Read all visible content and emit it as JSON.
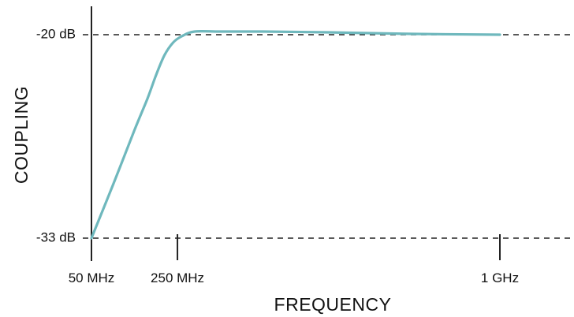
{
  "chart_data": {
    "type": "line",
    "title": "",
    "xlabel": "FREQUENCY",
    "ylabel": "COUPLING",
    "x_ticks": [
      {
        "value": 50,
        "label": "50 MHz"
      },
      {
        "value": 250,
        "label": "250 MHz"
      },
      {
        "value": 1000,
        "label": "1 GHz"
      }
    ],
    "y_ticks": [
      {
        "value": -20,
        "label": "-20 dB"
      },
      {
        "value": -33,
        "label": "-33 dB"
      }
    ],
    "xlim": [
      50,
      1000
    ],
    "ylim": [
      -33,
      -20
    ],
    "reference_lines": [
      -20,
      -33
    ],
    "grid": false,
    "series": [
      {
        "color": "#6fb8bd",
        "points": [
          [
            50,
            -33
          ],
          [
            100,
            -29.6
          ],
          [
            150,
            -26.1
          ],
          [
            180,
            -24.1
          ],
          [
            200,
            -22.6
          ],
          [
            220,
            -21.3
          ],
          [
            240,
            -20.5
          ],
          [
            260,
            -20.1
          ],
          [
            290,
            -19.8
          ],
          [
            350,
            -19.8
          ],
          [
            450,
            -19.8
          ],
          [
            600,
            -19.85
          ],
          [
            800,
            -19.95
          ],
          [
            1000,
            -20
          ]
        ]
      }
    ]
  }
}
